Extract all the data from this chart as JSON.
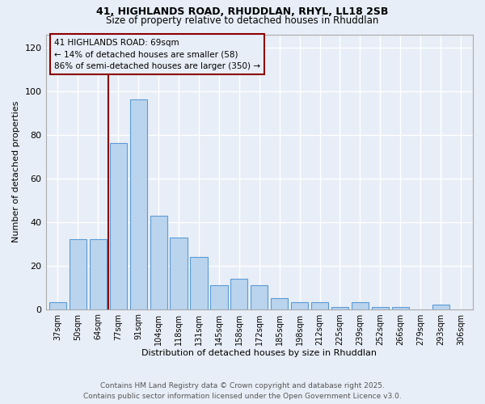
{
  "title_line1": "41, HIGHLANDS ROAD, RHUDDLAN, RHYL, LL18 2SB",
  "title_line2": "Size of property relative to detached houses in Rhuddlan",
  "xlabel": "Distribution of detached houses by size in Rhuddlan",
  "ylabel": "Number of detached properties",
  "categories": [
    "37sqm",
    "50sqm",
    "64sqm",
    "77sqm",
    "91sqm",
    "104sqm",
    "118sqm",
    "131sqm",
    "145sqm",
    "158sqm",
    "172sqm",
    "185sqm",
    "198sqm",
    "212sqm",
    "225sqm",
    "239sqm",
    "252sqm",
    "266sqm",
    "279sqm",
    "293sqm",
    "306sqm"
  ],
  "values": [
    3,
    32,
    32,
    76,
    96,
    43,
    33,
    24,
    11,
    14,
    11,
    5,
    3,
    3,
    1,
    3,
    1,
    1,
    0,
    2,
    0
  ],
  "bar_color": "#bad4ee",
  "bar_edge_color": "#5b9bd5",
  "vline_x": 2.5,
  "vline_color": "#8b0000",
  "annotation_title": "41 HIGHLANDS ROAD: 69sqm",
  "annotation_line2": "← 14% of detached houses are smaller (58)",
  "annotation_line3": "86% of semi-detached houses are larger (350) →",
  "ylim": [
    0,
    126
  ],
  "yticks": [
    0,
    20,
    40,
    60,
    80,
    100,
    120
  ],
  "background_color": "#e8eef7",
  "grid_color": "#ffffff",
  "footer_line1": "Contains HM Land Registry data © Crown copyright and database right 2025.",
  "footer_line2": "Contains public sector information licensed under the Open Government Licence v3.0."
}
